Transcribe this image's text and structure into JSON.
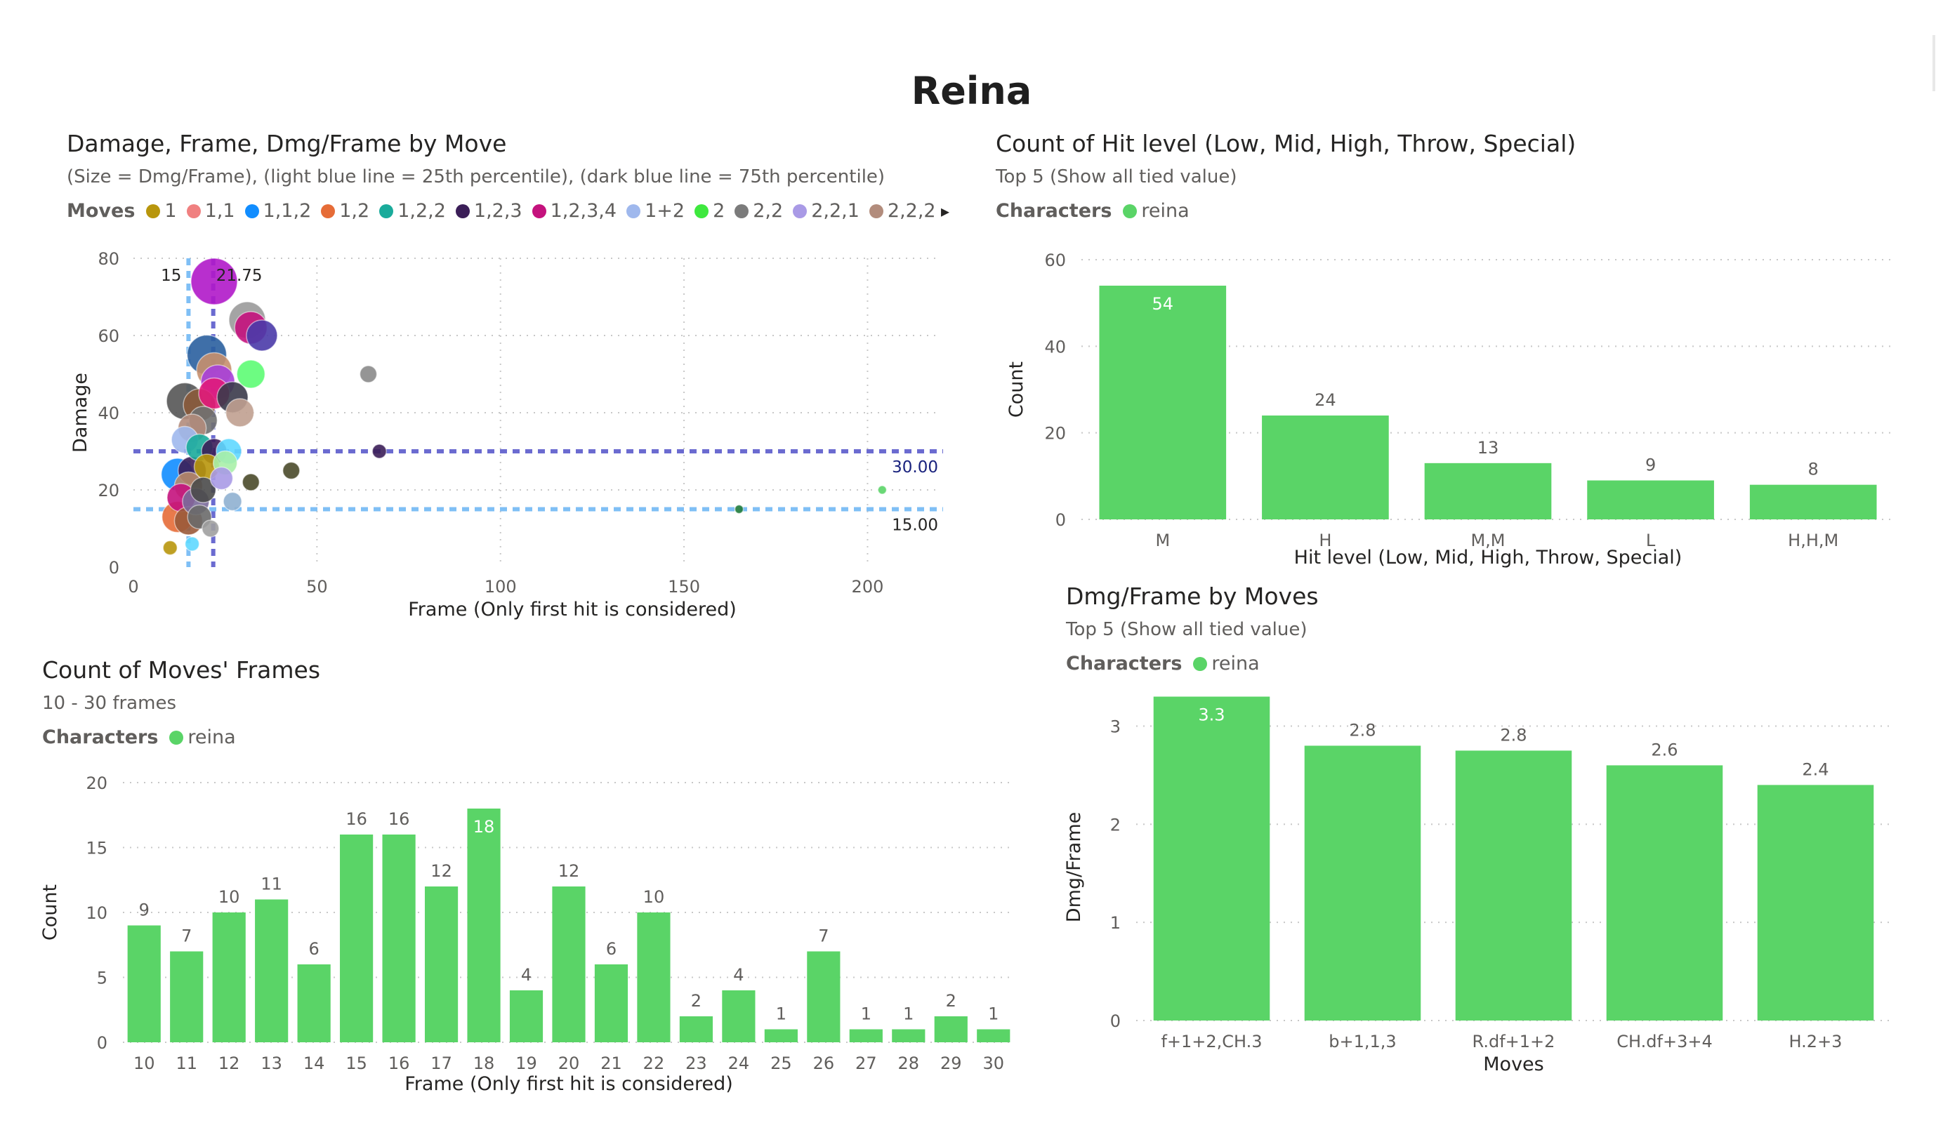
{
  "page": {
    "title": "Reina"
  },
  "colors": {
    "bar": "#5ad467",
    "grid": "#c8c8c8",
    "axis_text": "#605e5c",
    "p25": "#7fbff5",
    "p75": "#6b6bd0"
  },
  "chart_data": [
    {
      "id": "scatter",
      "type": "scatter",
      "title": "Damage, Frame, Dmg/Frame by Move",
      "subtitle": "(Size = Dmg/Frame), (light blue line = 25th percentile), (dark blue line = 75th percentile)",
      "legend_title": "Moves",
      "legend": [
        {
          "name": "1",
          "color": "#b8960c"
        },
        {
          "name": "1,1",
          "color": "#f08080"
        },
        {
          "name": "1,1,2",
          "color": "#118dff"
        },
        {
          "name": "1,2",
          "color": "#e66c37"
        },
        {
          "name": "1,2,2",
          "color": "#1aab9b"
        },
        {
          "name": "1,2,3",
          "color": "#3b1e58"
        },
        {
          "name": "1,2,3,4",
          "color": "#c4127d"
        },
        {
          "name": "1+2",
          "color": "#9fb8ed"
        },
        {
          "name": "2",
          "color": "#3ee83e"
        },
        {
          "name": "2,2",
          "color": "#7b7b7b"
        },
        {
          "name": "2,2,1",
          "color": "#a99ae6"
        },
        {
          "name": "2,2,2",
          "color": "#b28c7c"
        }
      ],
      "xlabel": "Frame (Only first hit is considered)",
      "ylabel": "Damage",
      "xlim": [
        0,
        220
      ],
      "ylim": [
        0,
        80
      ],
      "xticks": [
        "0",
        "50",
        "100",
        "150",
        "200"
      ],
      "yticks": [
        "0",
        "20",
        "40",
        "60",
        "80"
      ],
      "ref_lines": {
        "x_p25": {
          "value": 15,
          "label": "15"
        },
        "x_p75": {
          "value": 21.75,
          "label": "21.75"
        },
        "y_p75": {
          "value": 30,
          "label": "30.00"
        },
        "y_p25": {
          "value": 15,
          "label": "15.00"
        }
      },
      "points": [
        {
          "x": 22,
          "y": 74,
          "r": 3.3,
          "color": "#b018c9"
        },
        {
          "x": 31,
          "y": 64,
          "r": 2.6,
          "color": "#9a9a9a"
        },
        {
          "x": 32,
          "y": 62,
          "r": 2.3,
          "color": "#c4127d"
        },
        {
          "x": 35,
          "y": 60,
          "r": 2.2,
          "color": "#4a3aa8"
        },
        {
          "x": 20,
          "y": 55,
          "r": 2.8,
          "color": "#2a5f9e"
        },
        {
          "x": 22,
          "y": 51,
          "r": 2.5,
          "color": "#c78f6d"
        },
        {
          "x": 32,
          "y": 50,
          "r": 2.0,
          "color": "#5dfc74"
        },
        {
          "x": 23,
          "y": 48,
          "r": 2.4,
          "color": "#a73fd9"
        },
        {
          "x": 14,
          "y": 43,
          "r": 2.6,
          "color": "#555555"
        },
        {
          "x": 18,
          "y": 42,
          "r": 2.3,
          "color": "#8a5a3a"
        },
        {
          "x": 22,
          "y": 45,
          "r": 2.2,
          "color": "#e01a7a"
        },
        {
          "x": 27,
          "y": 44,
          "r": 2.2,
          "color": "#3a3a4a"
        },
        {
          "x": 29,
          "y": 40,
          "r": 2.0,
          "color": "#c0a090"
        },
        {
          "x": 19,
          "y": 38,
          "r": 2.0,
          "color": "#707070"
        },
        {
          "x": 16,
          "y": 36,
          "r": 2.0,
          "color": "#b28c7c"
        },
        {
          "x": 14,
          "y": 33,
          "r": 1.9,
          "color": "#9fb8ed"
        },
        {
          "x": 18,
          "y": 31,
          "r": 1.9,
          "color": "#1aab9b"
        },
        {
          "x": 22,
          "y": 30,
          "r": 1.8,
          "color": "#3b1e58"
        },
        {
          "x": 26,
          "y": 30,
          "r": 1.8,
          "color": "#5fd8ff"
        },
        {
          "x": 25,
          "y": 27,
          "r": 1.7,
          "color": "#a8f0a8"
        },
        {
          "x": 12,
          "y": 24,
          "r": 2.3,
          "color": "#118dff"
        },
        {
          "x": 16,
          "y": 25,
          "r": 2.0,
          "color": "#3b1e58"
        },
        {
          "x": 20,
          "y": 26,
          "r": 1.8,
          "color": "#b8960c"
        },
        {
          "x": 24,
          "y": 23,
          "r": 1.6,
          "color": "#a99ae6"
        },
        {
          "x": 15,
          "y": 21,
          "r": 2.0,
          "color": "#b88a6a"
        },
        {
          "x": 19,
          "y": 20,
          "r": 1.8,
          "color": "#4a4a4a"
        },
        {
          "x": 13,
          "y": 18,
          "r": 2.0,
          "color": "#c4127d"
        },
        {
          "x": 17,
          "y": 17,
          "r": 1.9,
          "color": "#7a6a9a"
        },
        {
          "x": 27,
          "y": 17,
          "r": 1.3,
          "color": "#8fb0d0"
        },
        {
          "x": 12,
          "y": 13,
          "r": 2.2,
          "color": "#e66c37"
        },
        {
          "x": 15,
          "y": 12,
          "r": 2.0,
          "color": "#9a5a3a"
        },
        {
          "x": 18,
          "y": 13,
          "r": 1.7,
          "color": "#6a6a6a"
        },
        {
          "x": 21,
          "y": 10,
          "r": 1.2,
          "color": "#a0a0a0"
        },
        {
          "x": 16,
          "y": 6,
          "r": 1.0,
          "color": "#5fd8ff"
        },
        {
          "x": 10,
          "y": 5,
          "r": 1.0,
          "color": "#b8960c"
        },
        {
          "x": 32,
          "y": 22,
          "r": 1.2,
          "color": "#4a4a2a"
        },
        {
          "x": 43,
          "y": 25,
          "r": 1.2,
          "color": "#4a4a2a"
        },
        {
          "x": 64,
          "y": 50,
          "r": 1.2,
          "color": "#8a8a8a"
        },
        {
          "x": 67,
          "y": 30,
          "r": 1.0,
          "color": "#3b1e58"
        },
        {
          "x": 165,
          "y": 15,
          "r": 0.6,
          "color": "#1e7a3a"
        },
        {
          "x": 204,
          "y": 20,
          "r": 0.6,
          "color": "#5ad467"
        }
      ]
    },
    {
      "id": "hit_level",
      "type": "bar",
      "title": "Count of Hit level (Low, Mid, High, Throw, Special)",
      "subtitle": "Top 5 (Show all tied value)",
      "legend_title": "Characters",
      "legend": [
        {
          "name": "reina",
          "color": "#5ad467"
        }
      ],
      "xlabel": "Hit level (Low, Mid, High, Throw, Special)",
      "ylabel": "Count",
      "ylim": [
        0,
        60
      ],
      "yticks": [
        "0",
        "20",
        "40",
        "60"
      ],
      "categories": [
        "M",
        "H",
        "M,M",
        "L",
        "H,H,M"
      ],
      "values": [
        54,
        24,
        13,
        9,
        8
      ]
    },
    {
      "id": "frames",
      "type": "bar",
      "title": "Count of Moves' Frames",
      "subtitle": "10 - 30 frames",
      "legend_title": "Characters",
      "legend": [
        {
          "name": "reina",
          "color": "#5ad467"
        }
      ],
      "xlabel": "Frame (Only first hit is considered)",
      "ylabel": "Count",
      "ylim": [
        0,
        20
      ],
      "yticks": [
        "0",
        "5",
        "10",
        "15",
        "20"
      ],
      "categories": [
        "10",
        "11",
        "12",
        "13",
        "14",
        "15",
        "16",
        "17",
        "18",
        "19",
        "20",
        "21",
        "22",
        "23",
        "24",
        "25",
        "26",
        "27",
        "28",
        "29",
        "30"
      ],
      "values": [
        9,
        7,
        10,
        11,
        6,
        16,
        16,
        12,
        18,
        4,
        12,
        6,
        10,
        2,
        4,
        1,
        7,
        1,
        1,
        2,
        1
      ]
    },
    {
      "id": "dmg_frame",
      "type": "bar",
      "title": "Dmg/Frame by Moves",
      "subtitle": "Top 5 (Show all tied value)",
      "legend_title": "Characters",
      "legend": [
        {
          "name": "reina",
          "color": "#5ad467"
        }
      ],
      "xlabel": "Moves",
      "ylabel": "Dmg/Frame",
      "ylim": [
        0,
        3.3
      ],
      "yticks": [
        "0",
        "1",
        "2",
        "3"
      ],
      "categories": [
        "f+1+2,CH.3",
        "b+1,1,3",
        "R.df+1+2",
        "CH.df+3+4",
        "H.2+3"
      ],
      "values": [
        3.3,
        2.8,
        2.75,
        2.6,
        2.4
      ],
      "value_labels": [
        "3.3",
        "2.8",
        "2.8",
        "2.6",
        "2.4"
      ]
    }
  ]
}
